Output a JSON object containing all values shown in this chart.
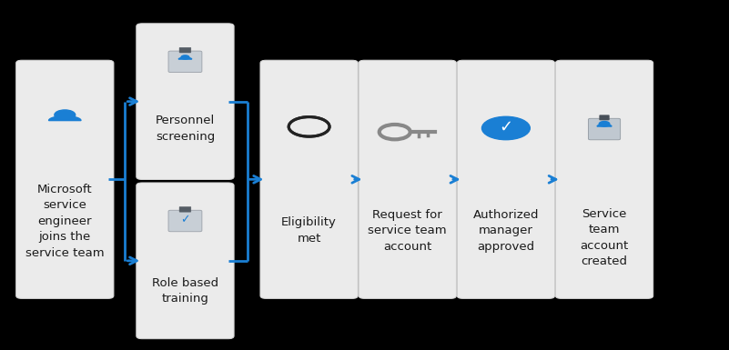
{
  "background_color": "#000000",
  "box_bg": "#ebebeb",
  "box_edge": "#d5d5d5",
  "arrow_color": "#1a7fd4",
  "text_color": "#1a1a1a",
  "icon_blue": "#1a7fd4",
  "icon_gray": "#888888",
  "icon_dark": "#222222",
  "font_size": 9.5,
  "boxes": {
    "engineer": [
      0.03,
      0.155,
      0.118,
      0.665
    ],
    "personnel": [
      0.195,
      0.495,
      0.118,
      0.43
    ],
    "role": [
      0.195,
      0.04,
      0.118,
      0.43
    ],
    "eligibility": [
      0.365,
      0.155,
      0.118,
      0.665
    ],
    "request": [
      0.5,
      0.155,
      0.118,
      0.665
    ],
    "authorized": [
      0.635,
      0.155,
      0.118,
      0.665
    ],
    "created": [
      0.77,
      0.155,
      0.118,
      0.665
    ]
  },
  "labels": {
    "engineer": "Microsoft\nservice\nengineer\njoins the\nservice team",
    "personnel": "Personnel\nscreening",
    "role": "Role based\ntraining",
    "eligibility": "Eligibility\nmet",
    "request": "Request for\nservice team\naccount",
    "authorized": "Authorized\nmanager\napproved",
    "created": "Service\nteam\naccount\ncreated"
  }
}
